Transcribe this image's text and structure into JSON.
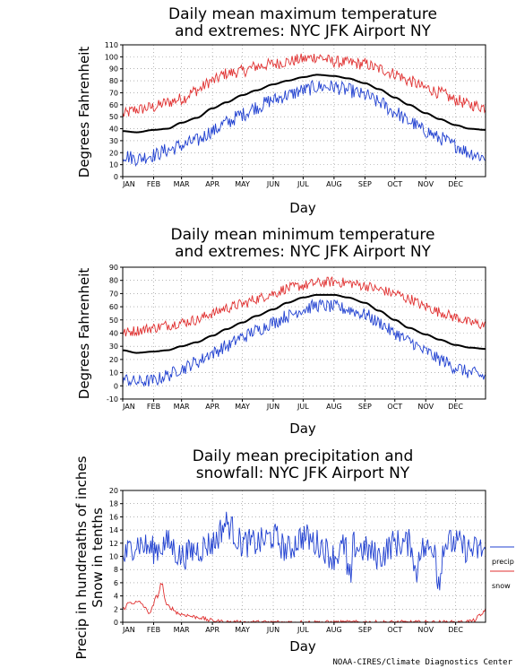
{
  "credit": "NOAA-CIRES/Climate Diagnostics Center",
  "months": [
    "JAN",
    "FEB",
    "MAR",
    "APR",
    "MAY",
    "JUN",
    "JUL",
    "AUG",
    "SEP",
    "OCT",
    "NOV",
    "DEC"
  ],
  "colors": {
    "high": "#e03030",
    "mean": "#000000",
    "low": "#2040d0",
    "snow": "#e03030",
    "grid": "#888888"
  },
  "chart_data": [
    {
      "type": "line",
      "title_line1": "Daily mean maximum temperature",
      "title_line2": "and extremes: NYC JFK Airport NY",
      "xlabel": "Day",
      "ylabel": "Degrees Fahrenheit",
      "ylim": [
        0,
        110
      ],
      "yticks": [
        0,
        10,
        20,
        30,
        40,
        50,
        60,
        70,
        80,
        90,
        100,
        110
      ],
      "grid": true,
      "series": [
        {
          "role": "high",
          "color": "#e03030",
          "anchors": [
            [
              1,
              52
            ],
            [
              15,
              56
            ],
            [
              32,
              58
            ],
            [
              46,
              62
            ],
            [
              60,
              65
            ],
            [
              75,
              72
            ],
            [
              91,
              80
            ],
            [
              105,
              86
            ],
            [
              121,
              88
            ],
            [
              135,
              92
            ],
            [
              152,
              94
            ],
            [
              166,
              96
            ],
            [
              182,
              98
            ],
            [
              196,
              100
            ],
            [
              213,
              96
            ],
            [
              227,
              95
            ],
            [
              244,
              94
            ],
            [
              258,
              90
            ],
            [
              274,
              86
            ],
            [
              288,
              80
            ],
            [
              305,
              74
            ],
            [
              319,
              70
            ],
            [
              335,
              64
            ],
            [
              349,
              60
            ],
            [
              365,
              58
            ]
          ],
          "noise": 5
        },
        {
          "role": "mean",
          "color": "#000000",
          "anchors": [
            [
              1,
              38
            ],
            [
              15,
              37
            ],
            [
              32,
              39
            ],
            [
              46,
              40
            ],
            [
              60,
              45
            ],
            [
              75,
              49
            ],
            [
              91,
              57
            ],
            [
              105,
              62
            ],
            [
              121,
              68
            ],
            [
              135,
              72
            ],
            [
              152,
              77
            ],
            [
              166,
              80
            ],
            [
              182,
              83
            ],
            [
              196,
              85
            ],
            [
              213,
              84
            ],
            [
              227,
              82
            ],
            [
              244,
              78
            ],
            [
              258,
              73
            ],
            [
              274,
              66
            ],
            [
              288,
              60
            ],
            [
              305,
              53
            ],
            [
              319,
              48
            ],
            [
              335,
              43
            ],
            [
              349,
              40
            ],
            [
              365,
              39
            ]
          ],
          "noise": 0
        },
        {
          "role": "low",
          "color": "#2040d0",
          "anchors": [
            [
              1,
              18
            ],
            [
              15,
              15
            ],
            [
              32,
              18
            ],
            [
              46,
              22
            ],
            [
              60,
              26
            ],
            [
              75,
              30
            ],
            [
              91,
              38
            ],
            [
              105,
              45
            ],
            [
              121,
              52
            ],
            [
              135,
              58
            ],
            [
              152,
              64
            ],
            [
              166,
              68
            ],
            [
              182,
              72
            ],
            [
              196,
              75
            ],
            [
              213,
              75
            ],
            [
              227,
              72
            ],
            [
              244,
              68
            ],
            [
              258,
              62
            ],
            [
              274,
              54
            ],
            [
              288,
              46
            ],
            [
              305,
              38
            ],
            [
              319,
              32
            ],
            [
              335,
              26
            ],
            [
              349,
              20
            ],
            [
              365,
              16
            ]
          ],
          "noise": 6
        }
      ]
    },
    {
      "type": "line",
      "title_line1": "Daily mean minimum temperature",
      "title_line2": "and extremes: NYC JFK Airport NY",
      "xlabel": "Day",
      "ylabel": "Degrees Fahrenheit",
      "ylim": [
        -10,
        90
      ],
      "yticks": [
        -10,
        0,
        10,
        20,
        30,
        40,
        50,
        60,
        70,
        80,
        90
      ],
      "grid": true,
      "series": [
        {
          "role": "high",
          "color": "#e03030",
          "anchors": [
            [
              1,
              40
            ],
            [
              15,
              42
            ],
            [
              32,
              44
            ],
            [
              46,
              46
            ],
            [
              60,
              48
            ],
            [
              75,
              50
            ],
            [
              91,
              55
            ],
            [
              105,
              59
            ],
            [
              121,
              62
            ],
            [
              135,
              66
            ],
            [
              152,
              70
            ],
            [
              166,
              74
            ],
            [
              182,
              76
            ],
            [
              196,
              78
            ],
            [
              213,
              79
            ],
            [
              227,
              78
            ],
            [
              244,
              76
            ],
            [
              258,
              73
            ],
            [
              274,
              70
            ],
            [
              288,
              66
            ],
            [
              305,
              60
            ],
            [
              319,
              56
            ],
            [
              335,
              52
            ],
            [
              349,
              48
            ],
            [
              365,
              46
            ]
          ],
          "noise": 4
        },
        {
          "role": "mean",
          "color": "#000000",
          "anchors": [
            [
              1,
              27
            ],
            [
              15,
              25
            ],
            [
              32,
              26
            ],
            [
              46,
              27
            ],
            [
              60,
              30
            ],
            [
              75,
              33
            ],
            [
              91,
              38
            ],
            [
              105,
              43
            ],
            [
              121,
              48
            ],
            [
              135,
              53
            ],
            [
              152,
              58
            ],
            [
              166,
              63
            ],
            [
              182,
              67
            ],
            [
              196,
              69
            ],
            [
              213,
              69
            ],
            [
              227,
              67
            ],
            [
              244,
              63
            ],
            [
              258,
              57
            ],
            [
              274,
              50
            ],
            [
              288,
              44
            ],
            [
              305,
              39
            ],
            [
              319,
              35
            ],
            [
              335,
              31
            ],
            [
              349,
              29
            ],
            [
              365,
              28
            ]
          ],
          "noise": 0
        },
        {
          "role": "low",
          "color": "#2040d0",
          "anchors": [
            [
              1,
              5
            ],
            [
              15,
              3
            ],
            [
              32,
              4
            ],
            [
              46,
              8
            ],
            [
              60,
              13
            ],
            [
              75,
              18
            ],
            [
              91,
              25
            ],
            [
              105,
              30
            ],
            [
              121,
              37
            ],
            [
              135,
              42
            ],
            [
              152,
              48
            ],
            [
              166,
              53
            ],
            [
              182,
              58
            ],
            [
              196,
              61
            ],
            [
              213,
              60
            ],
            [
              227,
              58
            ],
            [
              244,
              54
            ],
            [
              258,
              48
            ],
            [
              274,
              40
            ],
            [
              288,
              34
            ],
            [
              305,
              26
            ],
            [
              319,
              20
            ],
            [
              335,
              14
            ],
            [
              349,
              10
            ],
            [
              365,
              7
            ]
          ],
          "noise": 5
        }
      ]
    },
    {
      "type": "line",
      "title_line1": "Daily mean precipitation and",
      "title_line2": "snowfall: NYC JFK Airport NY",
      "xlabel": "Day",
      "ylabel_line1": "Precip in hundreaths of inches",
      "ylabel_line2": "Snow in tenths",
      "ylim": [
        0,
        20
      ],
      "yticks": [
        0,
        2,
        4,
        6,
        8,
        10,
        12,
        14,
        16,
        18,
        20
      ],
      "grid": true,
      "legend": [
        {
          "label": "precip",
          "color": "#2040d0"
        },
        {
          "label": "snow",
          "color": "#e03030"
        }
      ],
      "series": [
        {
          "role": "precip",
          "name": "precip",
          "color": "#2040d0",
          "anchors": [
            [
              1,
              10
            ],
            [
              15,
              12
            ],
            [
              32,
              11
            ],
            [
              46,
              12
            ],
            [
              60,
              10
            ],
            [
              75,
              11
            ],
            [
              91,
              12
            ],
            [
              105,
              15
            ],
            [
              121,
              12
            ],
            [
              135,
              12
            ],
            [
              152,
              13
            ],
            [
              166,
              11
            ],
            [
              182,
              13
            ],
            [
              196,
              12
            ],
            [
              213,
              10
            ],
            [
              227,
              12
            ],
            [
              244,
              11
            ],
            [
              258,
              10
            ],
            [
              274,
              12
            ],
            [
              288,
              12
            ],
            [
              305,
              11
            ],
            [
              319,
              12
            ],
            [
              335,
              12
            ],
            [
              349,
              11
            ],
            [
              365,
              11
            ]
          ],
          "noise": 2.2
        },
        {
          "role": "snow",
          "name": "snow",
          "color": "#e03030",
          "anchors": [
            [
              1,
              2
            ],
            [
              8,
              3
            ],
            [
              18,
              3
            ],
            [
              28,
              1.5
            ],
            [
              36,
              4
            ],
            [
              40,
              6
            ],
            [
              45,
              2.5
            ],
            [
              60,
              1.2
            ],
            [
              75,
              0.8
            ],
            [
              90,
              0.3
            ],
            [
              100,
              0.1
            ],
            [
              110,
              0
            ],
            [
              340,
              0
            ],
            [
              352,
              0.2
            ],
            [
              360,
              1
            ],
            [
              365,
              2
            ]
          ],
          "noise": 0.3
        }
      ]
    }
  ]
}
